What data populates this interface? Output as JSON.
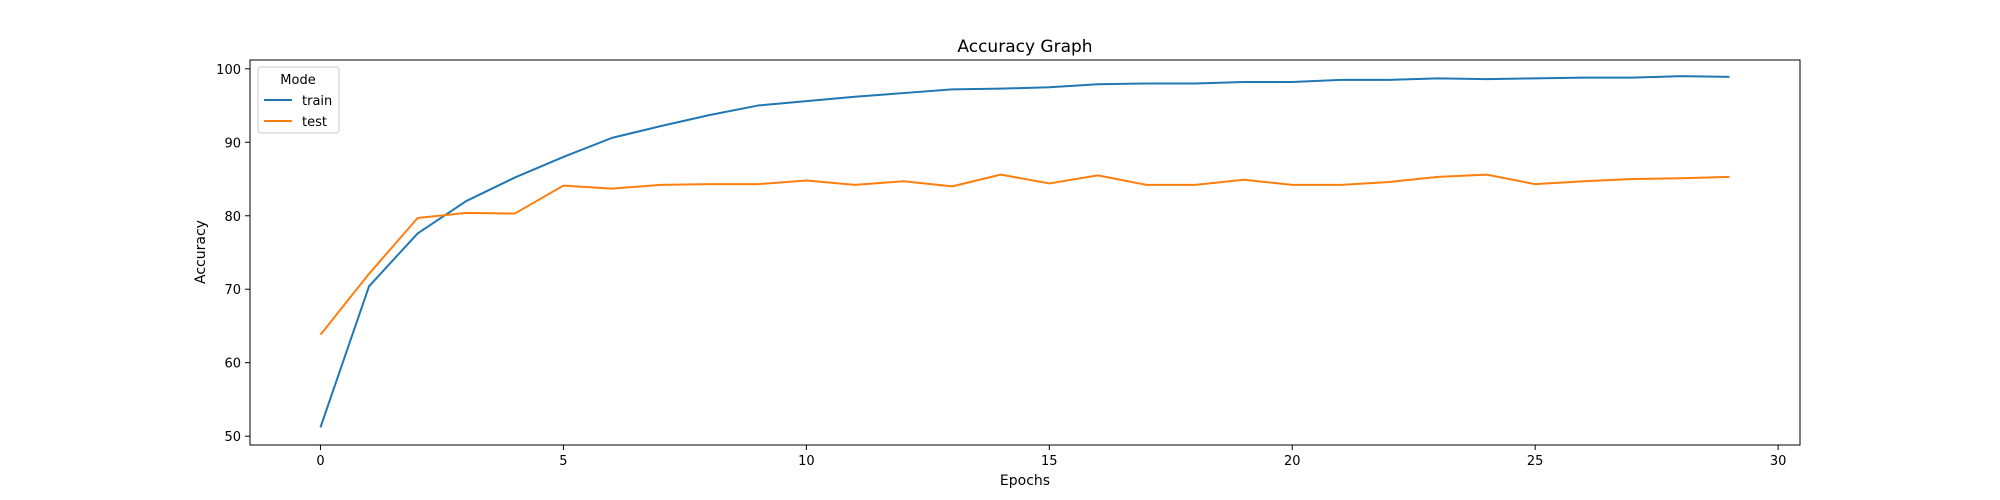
{
  "chart_data": {
    "type": "line",
    "title": "Accuracy Graph",
    "xlabel": "Epochs",
    "ylabel": "Accuracy",
    "xlim": [
      -1.45,
      30.45
    ],
    "ylim": [
      48.8,
      101.2
    ],
    "xticks": [
      0,
      5,
      10,
      15,
      20,
      25,
      30
    ],
    "yticks": [
      50,
      60,
      70,
      80,
      90,
      100
    ],
    "grid": false,
    "legend": {
      "title": "Mode",
      "placement": "top-left"
    },
    "x": [
      0,
      1,
      2,
      3,
      4,
      5,
      6,
      7,
      8,
      9,
      10,
      11,
      12,
      13,
      14,
      15,
      16,
      17,
      18,
      19,
      20,
      21,
      22,
      23,
      24,
      25,
      26,
      27,
      28,
      29
    ],
    "series": [
      {
        "name": "train",
        "color": "#1f77b4",
        "values": [
          51.2,
          70.4,
          77.6,
          82.0,
          85.2,
          88.0,
          90.6,
          92.2,
          93.7,
          95.0,
          95.6,
          96.2,
          96.7,
          97.2,
          97.3,
          97.5,
          97.9,
          98.0,
          98.0,
          98.2,
          98.2,
          98.5,
          98.5,
          98.7,
          98.6,
          98.7,
          98.8,
          98.8,
          99.0,
          98.9
        ]
      },
      {
        "name": "test",
        "color": "#ff7f0e",
        "values": [
          63.8,
          72.1,
          79.7,
          80.4,
          80.3,
          84.1,
          83.7,
          84.2,
          84.3,
          84.3,
          84.8,
          84.2,
          84.7,
          84.0,
          85.6,
          84.4,
          85.5,
          84.2,
          84.2,
          84.9,
          84.2,
          84.2,
          84.6,
          85.3,
          85.6,
          84.3,
          84.7,
          85.0,
          85.1,
          85.3
        ]
      }
    ]
  }
}
